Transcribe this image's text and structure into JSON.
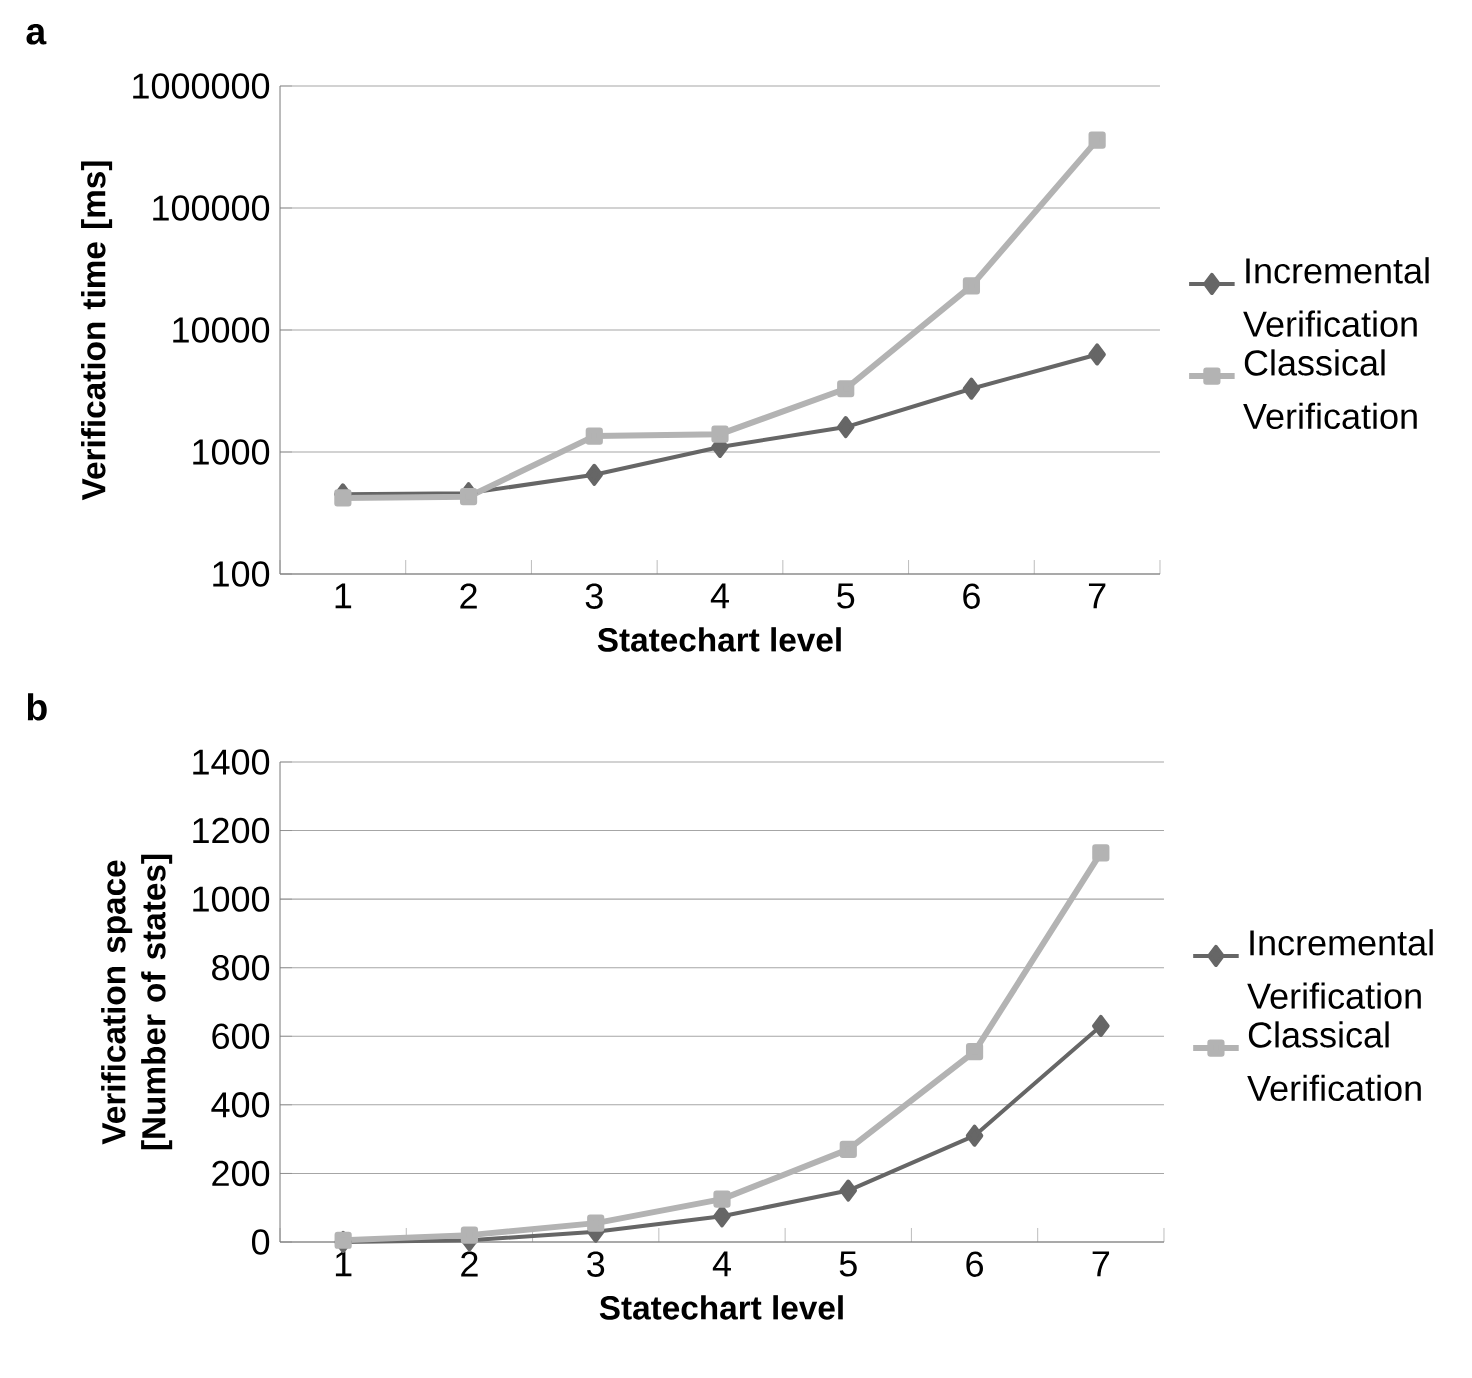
{
  "chart_data": [
    {
      "type": "line",
      "title": "a",
      "xlabel": "Statechart level",
      "ylabel": "Verification time [ms]",
      "categories": [
        "1",
        "2",
        "3",
        "4",
        "5",
        "6",
        "7"
      ],
      "series": [
        {
          "name": "Incremental Verification",
          "color": "#666666",
          "marker": "diamond",
          "values": [
            450,
            460,
            650,
            1100,
            1600,
            3300,
            6300
          ]
        },
        {
          "name": "Classical Verification",
          "color": "#b3b3b3",
          "marker": "square",
          "values": [
            420,
            430,
            1350,
            1400,
            3300,
            23000,
            360000
          ]
        }
      ],
      "log": "y",
      "ylim": [
        100,
        1000000
      ],
      "yticks": [
        100,
        1000,
        10000,
        100000,
        1000000
      ],
      "grid": "y",
      "legend": "right"
    },
    {
      "type": "line",
      "title": "b",
      "xlabel": "Statechart level",
      "ylabel": "Verification space [Number of states]",
      "categories": [
        "1",
        "2",
        "3",
        "4",
        "5",
        "6",
        "7"
      ],
      "series": [
        {
          "name": "Incremental Verification",
          "color": "#666666",
          "marker": "diamond",
          "values": [
            0,
            5,
            30,
            75,
            150,
            310,
            630
          ]
        },
        {
          "name": "Classical Verification",
          "color": "#b3b3b3",
          "marker": "square",
          "values": [
            5,
            20,
            55,
            125,
            270,
            555,
            1135
          ]
        }
      ],
      "ylim": [
        0,
        1400
      ],
      "yticks": [
        0,
        200,
        400,
        600,
        800,
        1000,
        1200,
        1400
      ],
      "grid": "y",
      "legend": "right"
    }
  ]
}
